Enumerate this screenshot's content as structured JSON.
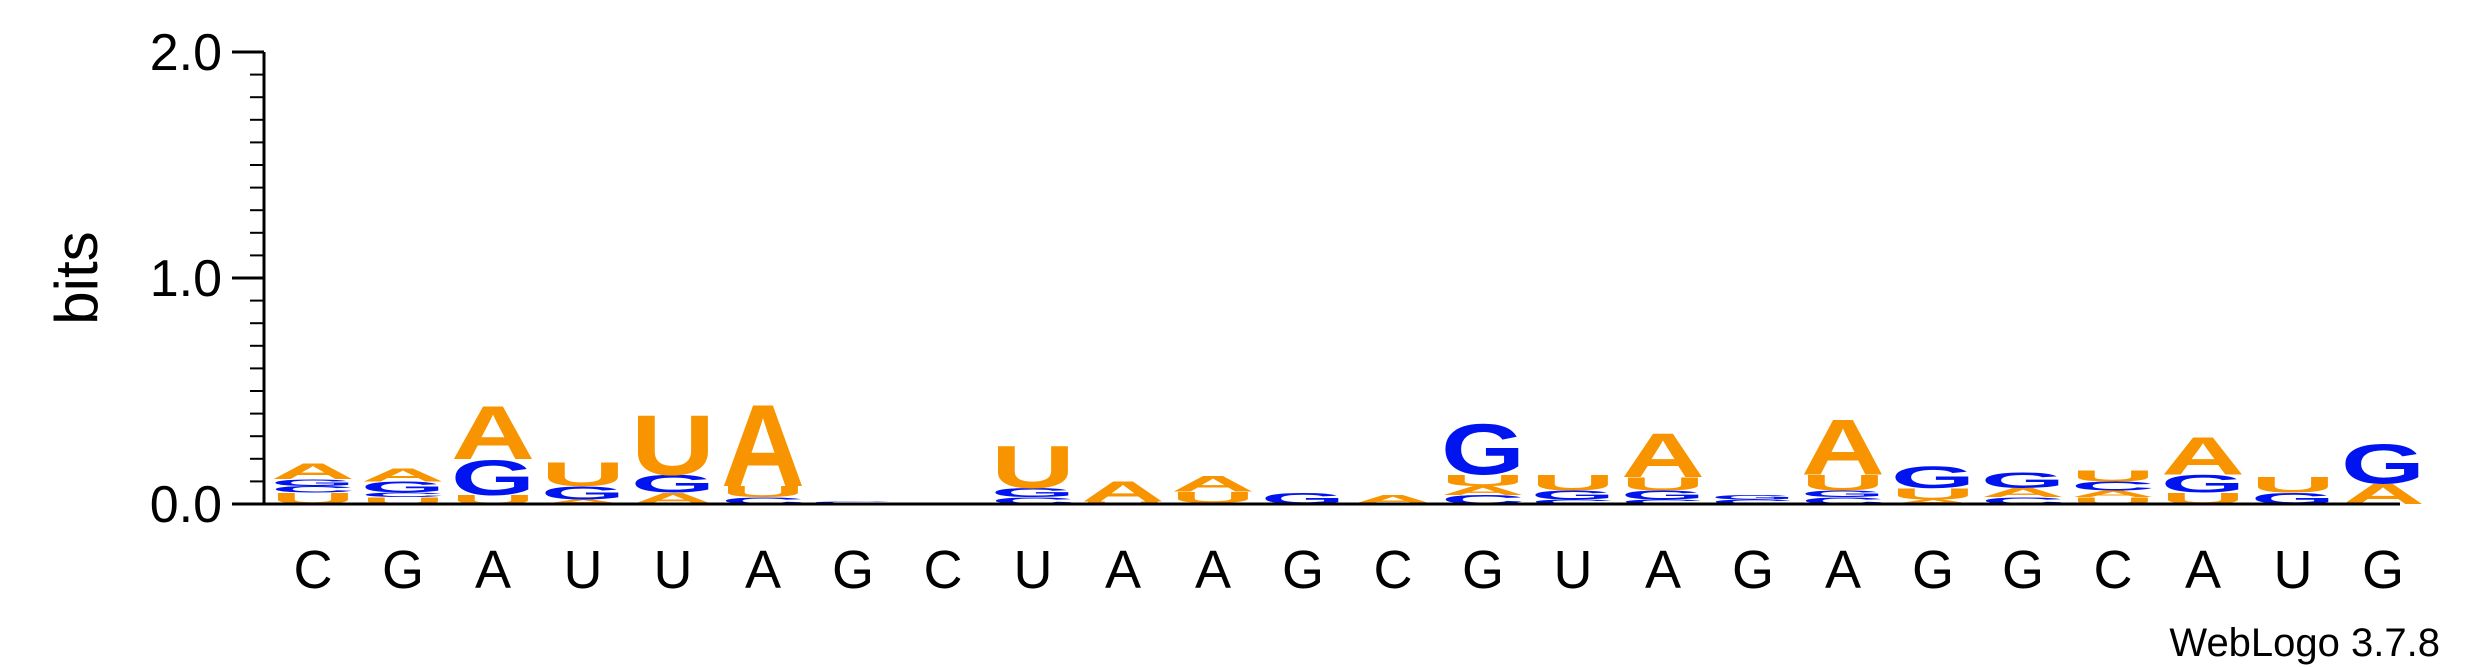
{
  "chart_data": {
    "type": "sequence-logo",
    "ylabel": "bits",
    "ylim": [
      0,
      2
    ],
    "yticks": [
      "0.0",
      "1.0",
      "2.0"
    ],
    "credit": "WebLogo 3.7.8",
    "colors": {
      "A": "#f79400",
      "U": "#f79400",
      "G": "#0014ef",
      "C": "#0014ef"
    },
    "positions": [
      {
        "label": "C",
        "stack": [
          [
            "U",
            0.05
          ],
          [
            "C",
            0.03
          ],
          [
            "G",
            0.03
          ],
          [
            "A",
            0.07
          ]
        ]
      },
      {
        "label": "G",
        "stack": [
          [
            "U",
            0.03
          ],
          [
            "C",
            0.02
          ],
          [
            "G",
            0.05
          ],
          [
            "A",
            0.06
          ]
        ]
      },
      {
        "label": "A",
        "stack": [
          [
            "U",
            0.04
          ],
          [
            "G",
            0.16
          ],
          [
            "A",
            0.24
          ]
        ]
      },
      {
        "label": "U",
        "stack": [
          [
            "A",
            0.02
          ],
          [
            "G",
            0.06
          ],
          [
            "U",
            0.11
          ]
        ]
      },
      {
        "label": "U",
        "stack": [
          [
            "A",
            0.05
          ],
          [
            "G",
            0.08
          ],
          [
            "U",
            0.27
          ]
        ]
      },
      {
        "label": "A",
        "stack": [
          [
            "C",
            0.03
          ],
          [
            "U",
            0.05
          ],
          [
            "A",
            0.37
          ]
        ]
      },
      {
        "label": "G",
        "stack": [
          [
            "U",
            0.005
          ],
          [
            "C",
            0.005
          ]
        ]
      },
      {
        "label": "C",
        "stack": []
      },
      {
        "label": "U",
        "stack": [
          [
            "C",
            0.03
          ],
          [
            "G",
            0.04
          ],
          [
            "U",
            0.19
          ]
        ]
      },
      {
        "label": "A",
        "stack": [
          [
            "U",
            0.01
          ],
          [
            "A",
            0.09
          ]
        ]
      },
      {
        "label": "A",
        "stack": [
          [
            "G",
            0.005
          ],
          [
            "U",
            0.05
          ],
          [
            "A",
            0.07
          ]
        ]
      },
      {
        "label": "G",
        "stack": [
          [
            "G",
            0.05
          ]
        ]
      },
      {
        "label": "C",
        "stack": [
          [
            "A",
            0.04
          ]
        ]
      },
      {
        "label": "G",
        "stack": [
          [
            "C",
            0.04
          ],
          [
            "A",
            0.04
          ],
          [
            "U",
            0.05
          ],
          [
            "G",
            0.23
          ]
        ]
      },
      {
        "label": "U",
        "stack": [
          [
            "C",
            0.02
          ],
          [
            "G",
            0.04
          ],
          [
            "U",
            0.07
          ]
        ]
      },
      {
        "label": "A",
        "stack": [
          [
            "C",
            0.02
          ],
          [
            "G",
            0.04
          ],
          [
            "U",
            0.06
          ],
          [
            "A",
            0.2
          ]
        ]
      },
      {
        "label": "G",
        "stack": [
          [
            "C",
            0.02
          ],
          [
            "G",
            0.02
          ]
        ]
      },
      {
        "label": "A",
        "stack": [
          [
            "C",
            0.03
          ],
          [
            "G",
            0.03
          ],
          [
            "U",
            0.07
          ],
          [
            "A",
            0.25
          ]
        ]
      },
      {
        "label": "G",
        "stack": [
          [
            "A",
            0.02
          ],
          [
            "U",
            0.05
          ],
          [
            "G",
            0.1
          ]
        ]
      },
      {
        "label": "G",
        "stack": [
          [
            "C",
            0.03
          ],
          [
            "A",
            0.04
          ],
          [
            "G",
            0.07
          ]
        ]
      },
      {
        "label": "C",
        "stack": [
          [
            "U",
            0.03
          ],
          [
            "A",
            0.03
          ],
          [
            "C",
            0.04
          ],
          [
            "U",
            0.05
          ]
        ]
      },
      {
        "label": "A",
        "stack": [
          [
            "U",
            0.05
          ],
          [
            "G",
            0.08
          ],
          [
            "A",
            0.17
          ]
        ]
      },
      {
        "label": "U",
        "stack": [
          [
            "G",
            0.05
          ],
          [
            "U",
            0.07
          ]
        ]
      },
      {
        "label": "G",
        "stack": [
          [
            "A",
            0.09
          ],
          [
            "G",
            0.18
          ]
        ]
      }
    ]
  }
}
